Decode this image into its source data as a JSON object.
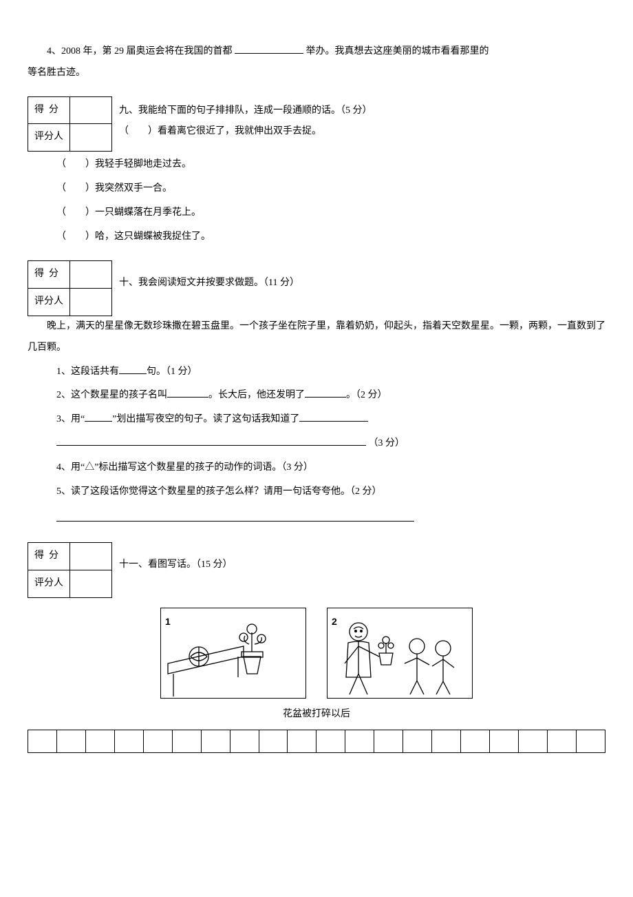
{
  "q4": {
    "prefix": "4、2008 年，第 29 届奥运会将在我国的首都 ",
    "mid": " 举办。我真想去这座美丽的城市看看那里的",
    "line2": "等名胜古迹。"
  },
  "scorebox": {
    "score": "得分",
    "grader": "评分人"
  },
  "s9": {
    "title": "九、我能给下面的句子排排队，连成一段通顺的话。（5 分）",
    "items": [
      "（　　）看着离它很近了，我就伸出双手去捉。",
      "（　　）我轻手轻脚地走过去。",
      "（　　）我突然双手一合。",
      "（　　）一只蝴蝶落在月季花上。",
      "（　　）哈，这只蝴蝶被我捉住了。"
    ]
  },
  "s10": {
    "title": "十、我会阅读短文并按要求做题。（11 分）",
    "passage": "晚上，满天的星星像无数珍珠撒在碧玉盘里。一个孩子坐在院子里，靠着奶奶，仰起头，指着天空数星星。一颗，两颗，一直数到了几百颗。",
    "q1a": "1、这段话共有",
    "q1b": "句。（1 分）",
    "q2a": "2、这个数星星的孩子名叫",
    "q2b": "。长大后，他还发明了",
    "q2c": "。（2 分）",
    "q3a": "3、用“",
    "q3b": "”划出描写夜空的句子。读了这句话我知道了",
    "q3c": "（3 分）",
    "q4": "4、用“△”标出描写这个数星星的孩子的动作的词语。（3 分）",
    "q5": "5、读了这段话你觉得这个数星星的孩子怎么样？请用一句话夸夸他。（2 分）"
  },
  "s11": {
    "title": "十一、看图写话。（15 分）",
    "img_labels": [
      "1",
      "2"
    ],
    "caption": "花盆被打碎以后",
    "grid_cols": 20
  }
}
